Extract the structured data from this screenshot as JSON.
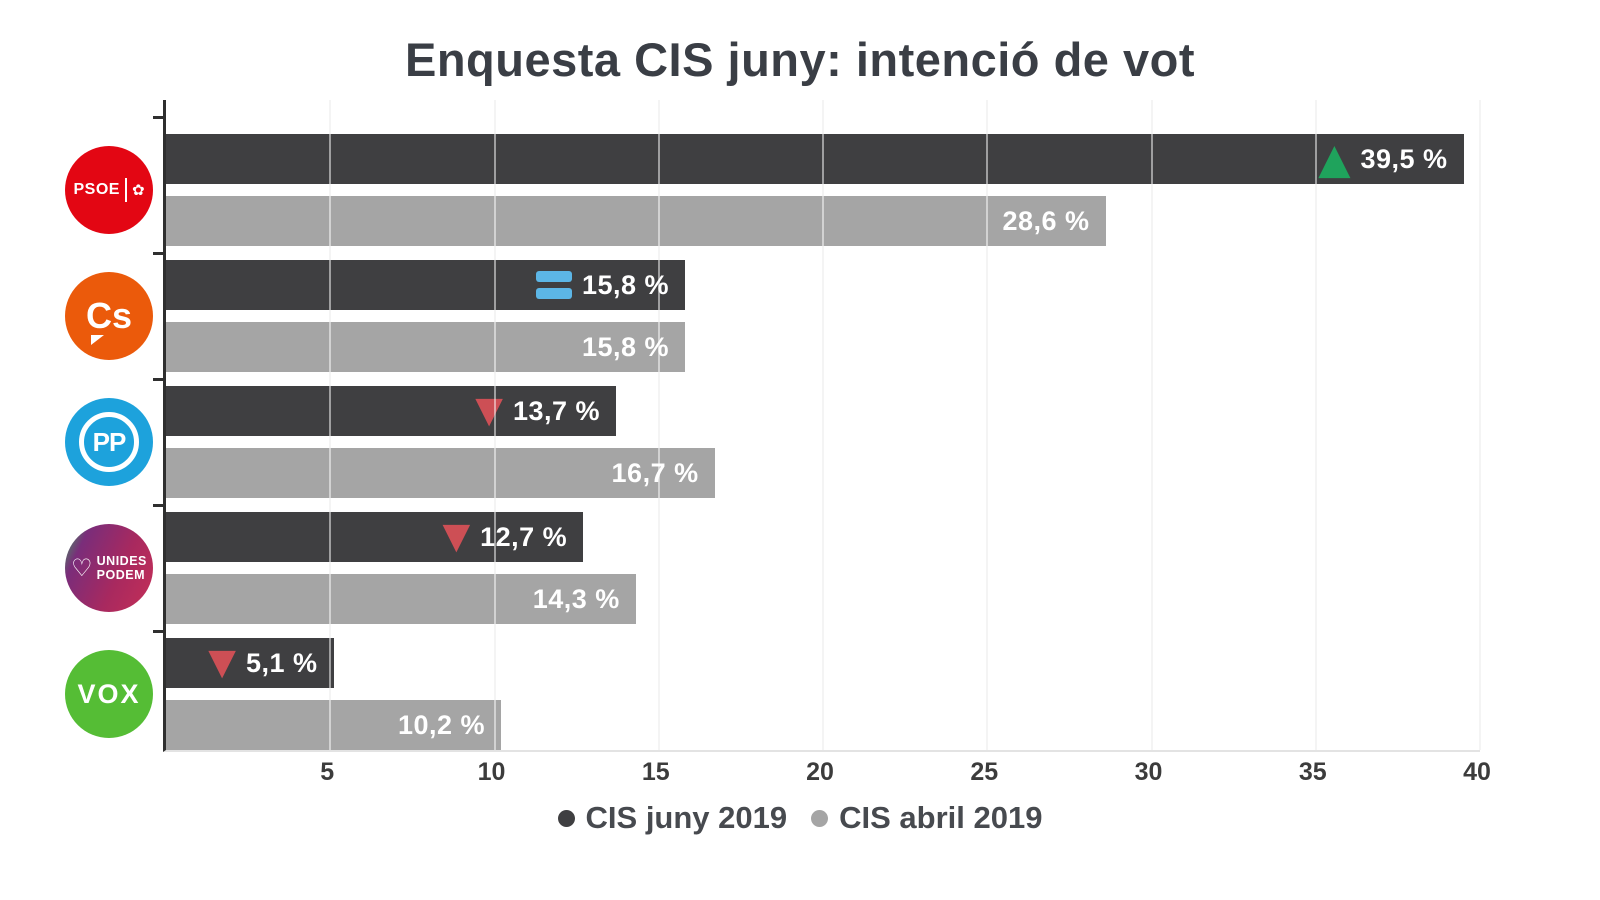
{
  "title": "Enquesta CIS juny: intenció de vot",
  "legend": [
    {
      "label": "CIS juny 2019",
      "color": "#3f3f41"
    },
    {
      "label": "CIS abril 2019",
      "color": "#a5a5a5"
    }
  ],
  "chart_data": {
    "type": "bar",
    "orientation": "horizontal",
    "title": "Enquesta CIS juny: intenció de vot",
    "categories": [
      "PSOE",
      "Cs",
      "PP",
      "Unides Podem",
      "VOX"
    ],
    "series": [
      {
        "name": "CIS juny 2019",
        "color": "#3f3f41",
        "values": [
          39.5,
          15.8,
          13.7,
          12.7,
          5.1
        ],
        "labels": [
          "39,5 %",
          "15,8 %",
          "13,7 %",
          "12,7 %",
          "5,1 %"
        ]
      },
      {
        "name": "CIS abril 2019",
        "color": "#a5a5a5",
        "values": [
          28.6,
          15.8,
          16.7,
          14.3,
          10.2
        ],
        "labels": [
          "28,6 %",
          "15,8 %",
          "16,7 %",
          "14,3 %",
          "10,2 %"
        ]
      }
    ],
    "trends": [
      "up",
      "equal",
      "down",
      "down",
      "down"
    ],
    "trend_colors": {
      "up": "#1fa35c",
      "down": "#cd4f55",
      "equal": "#5cb6e6"
    },
    "xlim": [
      0,
      40
    ],
    "x_ticks": [
      5,
      10,
      15,
      20,
      25,
      30,
      35,
      40
    ],
    "grid": true,
    "legend_position": "bottom"
  },
  "parties": [
    {
      "id": "psoe",
      "name": "PSOE",
      "logo_text": "PSOE",
      "logo_bg": "#e30613",
      "rose_icon": "✿"
    },
    {
      "id": "cs",
      "name": "Cs",
      "logo_text": "Cs",
      "logo_bg": "#eb5a0b"
    },
    {
      "id": "pp",
      "name": "PP",
      "logo_text": "PP",
      "logo_bg": "#1da2dc"
    },
    {
      "id": "unides-podem",
      "name": "Unides Podem",
      "logo_lines": [
        "UNIDES",
        "PODEM"
      ],
      "heart_icon": "♡",
      "logo_bg_gradient": [
        "#3aa65c",
        "#7a2d7a",
        "#a8295f",
        "#c52f57"
      ]
    },
    {
      "id": "vox",
      "name": "VOX",
      "logo_text": "VOX",
      "logo_bg": "#55bd35"
    }
  ]
}
